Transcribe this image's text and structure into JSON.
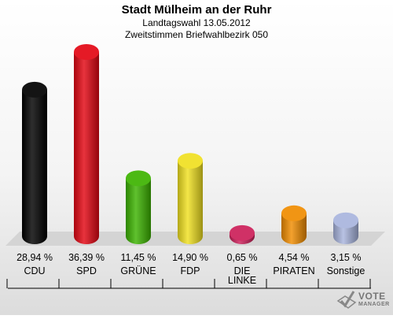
{
  "header": {
    "title": "Stadt Mülheim an der Ruhr",
    "subtitle": "Landtagswahl 13.05.2012",
    "subtitle2": "Zweitstimmen Briefwahlbezirk 050"
  },
  "chart_data": {
    "type": "bar",
    "categories": [
      "CDU",
      "SPD",
      "GRÜNE",
      "FDP",
      "DIE LINKE",
      "PIRATEN",
      "Sonstige"
    ],
    "category_lines": [
      [
        "CDU"
      ],
      [
        "SPD"
      ],
      [
        "GRÜNE"
      ],
      [
        "FDP"
      ],
      [
        "DIE",
        "LINKE"
      ],
      [
        "PIRATEN"
      ],
      [
        "Sonstige"
      ]
    ],
    "values": [
      28.94,
      36.39,
      11.45,
      14.9,
      0.65,
      4.54,
      3.15
    ],
    "value_labels": [
      "28,94 %",
      "36,39 %",
      "11,45 %",
      "14,90 %",
      "0,65 %",
      "4,54 %",
      "3,15 %"
    ],
    "colors": [
      "#000000",
      "#e30613",
      "#3cb300",
      "#f0e020",
      "#cc1f59",
      "#f08c00",
      "#a8b4dd"
    ],
    "ylim": [
      0,
      36.39
    ],
    "grid": false,
    "legend": "none"
  },
  "logo": {
    "line1": "VOTE",
    "line2": "MANAGER"
  }
}
